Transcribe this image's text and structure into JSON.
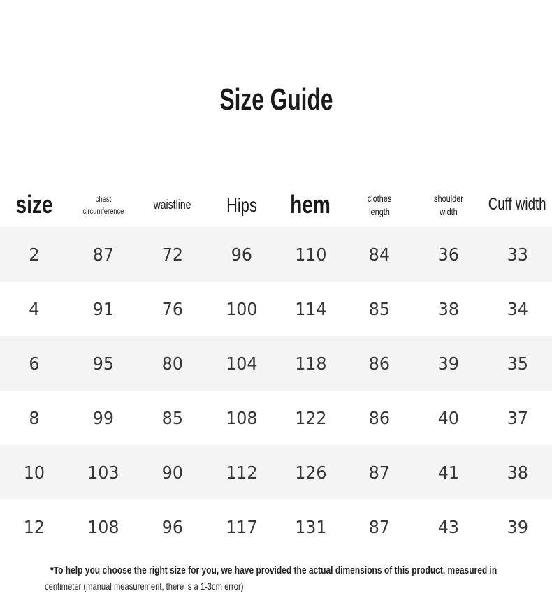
{
  "title": "Size Guide",
  "headers": [
    "size",
    "chest circumference",
    "waistline",
    "Hips",
    "hem",
    "clothes length",
    "shoulder width",
    "Cuff width"
  ],
  "rows": [
    [
      "2",
      "87",
      "72",
      "96",
      "110",
      "84",
      "36",
      "33"
    ],
    [
      "4",
      "91",
      "76",
      "100",
      "114",
      "85",
      "38",
      "34"
    ],
    [
      "6",
      "95",
      "80",
      "104",
      "118",
      "86",
      "39",
      "35"
    ],
    [
      "8",
      "99",
      "85",
      "108",
      "122",
      "86",
      "40",
      "37"
    ],
    [
      "10",
      "103",
      "90",
      "112",
      "126",
      "87",
      "41",
      "38"
    ],
    [
      "12",
      "108",
      "96",
      "117",
      "131",
      "87",
      "43",
      "39"
    ]
  ],
  "note": {
    "line1": "*To help you choose the right size for you, we have provided the actual dimensions of this product, measured in",
    "line2": "centimeter (manual measurement, there is a 1-3cm error)"
  },
  "colors": {
    "stripe": "#f4f4f4",
    "text": "#1a1a1a"
  }
}
